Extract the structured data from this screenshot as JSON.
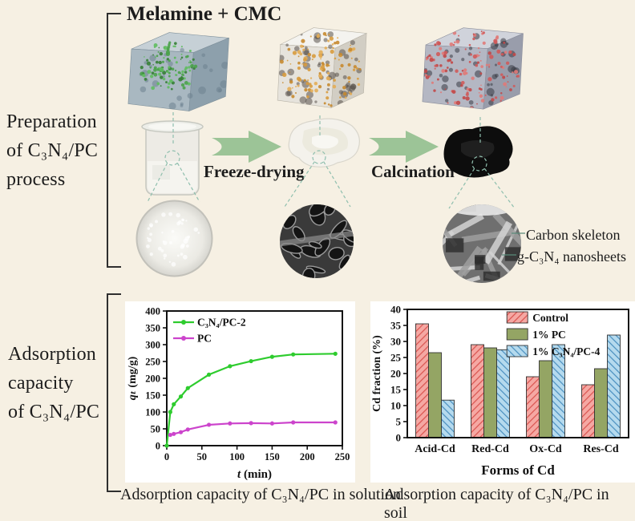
{
  "colors": {
    "background": "#f6f0e3",
    "panel": "#ffffff",
    "arrow": "#9cc497",
    "connector": "#8fbfae",
    "bracket": "#2f2f2f"
  },
  "top_section": {
    "side_label": "Preparation\nof C₃N₄/PC\nprocess",
    "title": "Melamine + CMC",
    "step1_label": "Freeze-drying",
    "step2_label": "Calcination",
    "annotation_carbon": "Carbon skeleton",
    "annotation_nanosheets": "g-C₃N₄ nanosheets",
    "renders": {
      "cube1": "melamine-cmc-solution-3d-render",
      "cube2": "freeze-dried-porous-3d-render",
      "cube3": "calcined-porous-3d-render",
      "beaker": "beaker-with-milky-solution",
      "white_sample": "freeze-dried-white-sample",
      "black_sample": "calcined-black-sample",
      "circle1": "solution-closeup-photo",
      "circle2": "sem-porous-structure",
      "circle3": "sem-nanosheet-structure"
    }
  },
  "bottom_section": {
    "side_label": "Adsorption\ncapacity\nof C₃N₄/PC",
    "caption_left": "Adsorption capacity of C₃N₄/PC in solution",
    "caption_right": "Adsorption capacity of C₃N₄/PC in soil"
  },
  "chart_data": [
    {
      "type": "line",
      "title": "",
      "xlabel": [
        {
          "text": "t",
          "italic": true
        },
        {
          "text": " (min)",
          "italic": false
        }
      ],
      "ylabel": [
        {
          "text": "qₜ",
          "italic": true
        },
        {
          "text": " (mg/g)",
          "italic": false
        }
      ],
      "xlim": [
        0,
        250
      ],
      "ylim": [
        0,
        400
      ],
      "xticks": [
        0,
        50,
        100,
        150,
        200,
        250
      ],
      "yticks": [
        0,
        50,
        100,
        150,
        200,
        250,
        300,
        350,
        400
      ],
      "grid": false,
      "legend_position": "top-left",
      "series": [
        {
          "name": "C₃N₄/PC-2",
          "color": "#2ecc2e",
          "x": [
            0,
            5,
            10,
            20,
            30,
            60,
            90,
            120,
            150,
            180,
            240
          ],
          "y": [
            0,
            100,
            123,
            146,
            171,
            211,
            236,
            251,
            264,
            271,
            273
          ]
        },
        {
          "name": "PC",
          "color": "#cc44cc",
          "x": [
            5,
            10,
            20,
            30,
            60,
            90,
            120,
            150,
            180,
            240
          ],
          "y": [
            32,
            35,
            40,
            48,
            62,
            66,
            67,
            66,
            69,
            69
          ]
        }
      ]
    },
    {
      "type": "bar",
      "title": "",
      "xlabel": "Forms of Cd",
      "ylabel": "Cd fraction (%)",
      "categories": [
        "Acid-Cd",
        "Red-Cd",
        "Ox-Cd",
        "Res-Cd"
      ],
      "ylim": [
        0,
        40
      ],
      "yticks": [
        0,
        5,
        10,
        15,
        20,
        25,
        30,
        35,
        40
      ],
      "grid": false,
      "legend_position": "top-right",
      "series": [
        {
          "name": "Control",
          "values": [
            35.5,
            29,
            19,
            16.5
          ],
          "fill": "#f5a8a3",
          "hatch": "#d9534f",
          "hatch_angle": 45
        },
        {
          "name": "1% PC",
          "values": [
            26.5,
            28,
            24,
            21.5
          ],
          "fill": "#94a564",
          "hatch": null,
          "hatch_angle": 0
        },
        {
          "name": "1% C₃N₄/PC-4",
          "values": [
            11.7,
            27.4,
            29,
            32
          ],
          "fill": "#b5daee",
          "hatch": "#4a8fbf",
          "hatch_angle": -45
        }
      ]
    }
  ]
}
